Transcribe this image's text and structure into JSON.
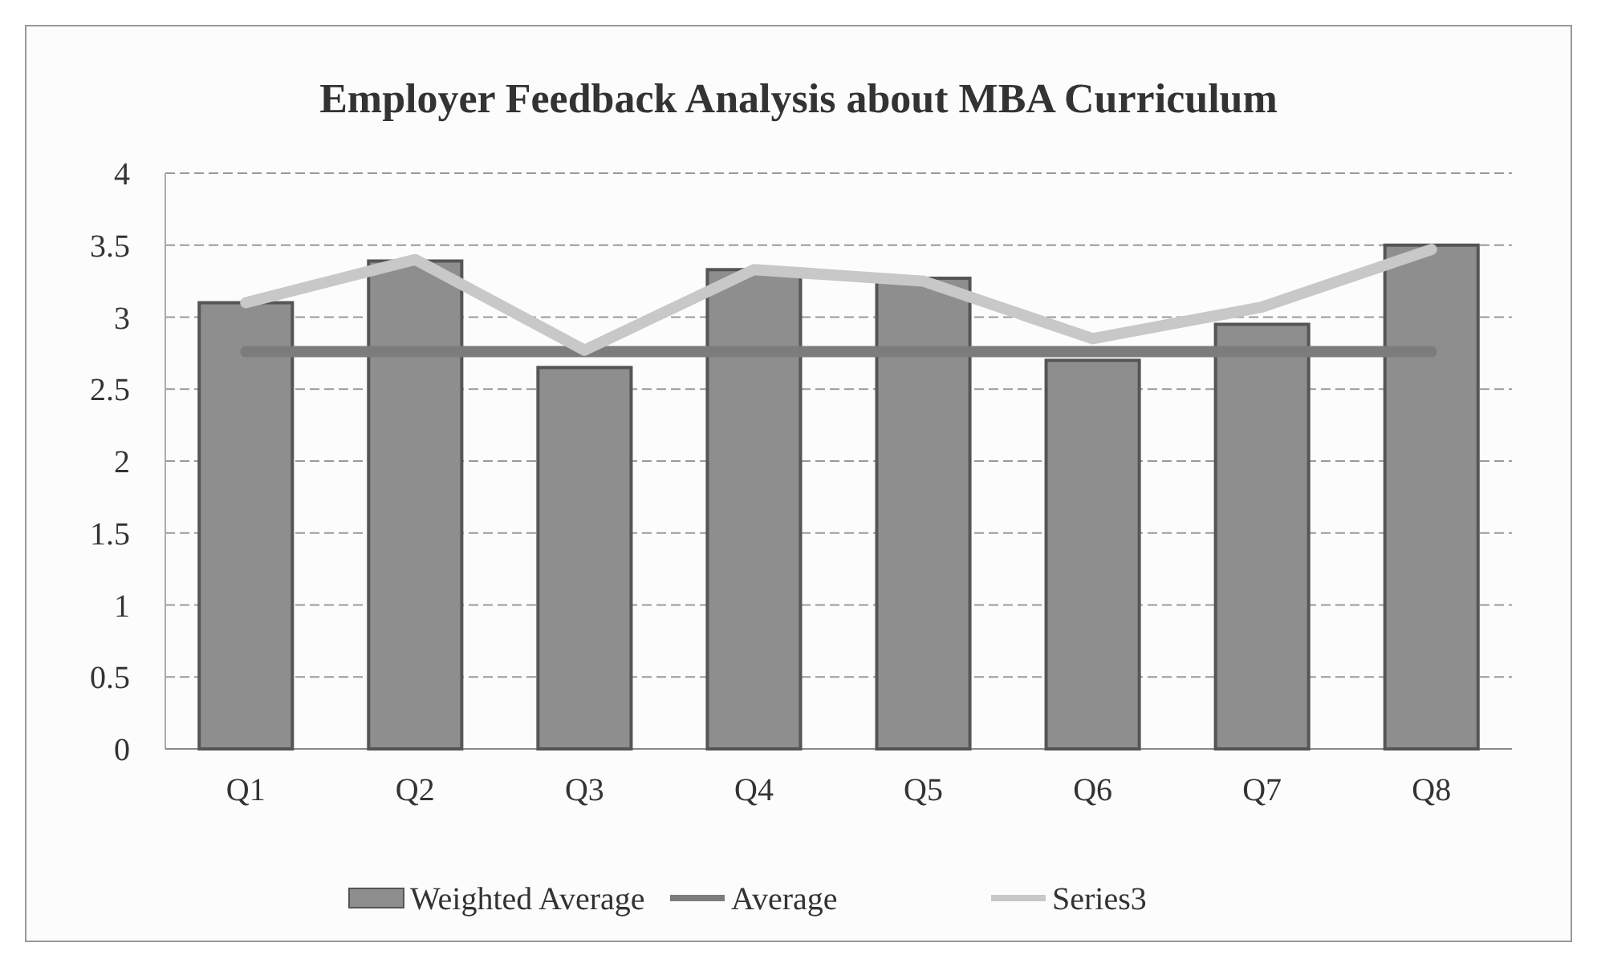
{
  "chart_data": {
    "type": "bar",
    "title": "Employer Feedback Analysis about MBA Curriculum",
    "categories": [
      "Q1",
      "Q2",
      "Q3",
      "Q4",
      "Q5",
      "Q6",
      "Q7",
      "Q8"
    ],
    "series": [
      {
        "name": "Weighted Average",
        "color": "#8e8e8e",
        "values": [
          3.1,
          3.39,
          2.65,
          3.33,
          3.27,
          2.7,
          2.95,
          3.5
        ]
      },
      {
        "name": "Average",
        "type": "line",
        "color": "#7c7c7c",
        "values": [
          2.76,
          2.76,
          2.76,
          2.76,
          2.76,
          2.76,
          2.76,
          2.76
        ]
      },
      {
        "name": "Series3",
        "type": "line",
        "color": "#c8c8c8",
        "values": [
          3.1,
          3.4,
          2.77,
          3.33,
          3.25,
          2.85,
          3.07,
          3.47
        ]
      }
    ],
    "ylim": [
      0,
      4
    ],
    "yticks": [
      0,
      0.5,
      1,
      1.5,
      2,
      2.5,
      3,
      3.5,
      4
    ],
    "grid": "y",
    "legend": "bottom"
  }
}
